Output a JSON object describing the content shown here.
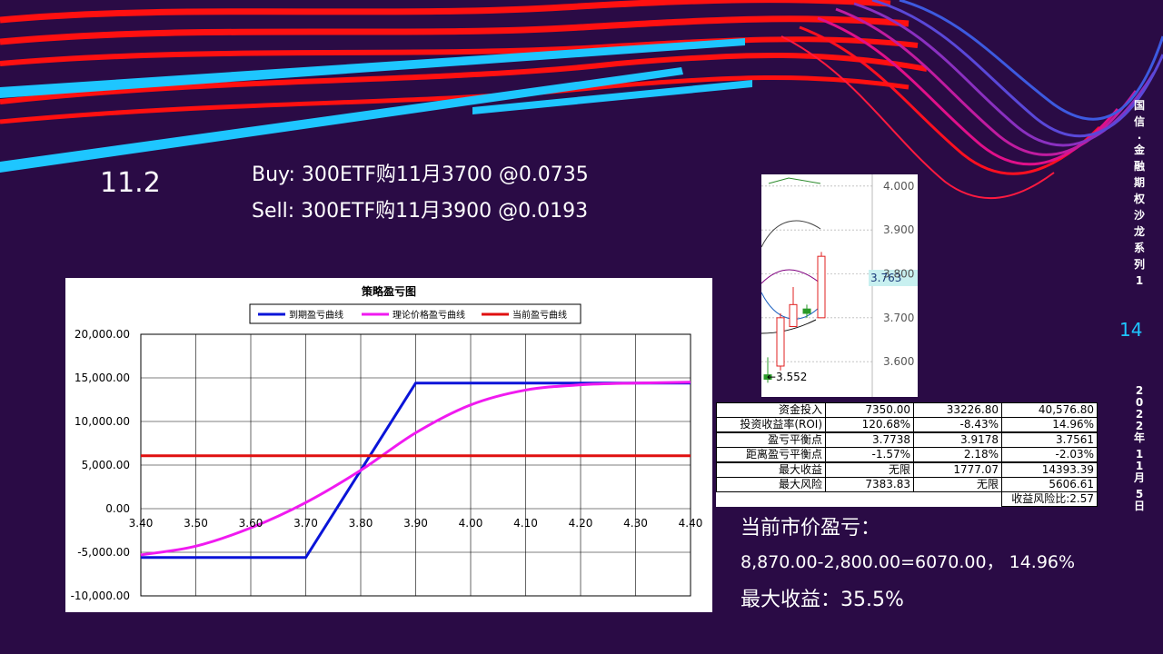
{
  "slide": {
    "title": "11.2",
    "buy": "Buy: 300ETF购11月3700 @0.0735",
    "sell": "Sell: 300ETF购11月3900 @0.0193",
    "page_number": "14",
    "sidebar_series": "国信·金融期权沙龙系列1",
    "sidebar_date": "2022年11月5日"
  },
  "notes": {
    "heading": "当前市价盈亏：",
    "calc": "8,870.00-2,800.00=6070.00，  14.96%",
    "max_gain": "最大收益：35.5%"
  },
  "stats": {
    "rows": [
      {
        "label": "资金投入",
        "c1": "7350.00",
        "c2": "33226.80",
        "c3": "40,576.80"
      },
      {
        "label": "投资收益率(ROI)",
        "c1": "120.68%",
        "c2": "-8.43%",
        "c3": "14.96%"
      },
      {
        "label": "盈亏平衡点",
        "c1": "3.7738",
        "c2": "3.9178",
        "c3": "3.7561"
      },
      {
        "label": "距离盈亏平衡点",
        "c1": "-1.57%",
        "c2": "2.18%",
        "c3": "-2.03%"
      },
      {
        "label": "最大收益",
        "c1": "无限",
        "c2": "1777.07",
        "c3": "14393.39"
      },
      {
        "label": "最大风险",
        "c1": "7383.83",
        "c2": "无限",
        "c3": "5606.61"
      }
    ],
    "footer": "收益风险比:2.57"
  },
  "colors": {
    "background": "#2a0b45",
    "expiry": "#0a14d8",
    "theoretical": "#f01af0",
    "current": "#e01010",
    "accent": "#1ec6ff"
  },
  "chart_data": [
    {
      "type": "line",
      "title": "策略盈亏图",
      "legend": [
        "到期盈亏曲线",
        "理论价格盈亏曲线",
        "当前盈亏曲线"
      ],
      "x_ticks": [
        "3.40",
        "3.50",
        "3.60",
        "3.70",
        "3.80",
        "3.90",
        "4.00",
        "4.10",
        "4.20",
        "4.30",
        "4.40"
      ],
      "y_ticks": [
        "20,000.00",
        "15,000.00",
        "10,000.00",
        "5,000.00",
        "0.00",
        "-5,000.00",
        "-10,000.00"
      ],
      "xlim": [
        3.4,
        4.4
      ],
      "ylim": [
        -10000,
        20000
      ],
      "grid": true,
      "legend_position": "top",
      "series": [
        {
          "name": "到期盈亏曲线",
          "x": [
            3.4,
            3.7,
            3.9,
            4.4
          ],
          "y": [
            -5600,
            -5600,
            14400,
            14400
          ]
        },
        {
          "name": "理论价格盈亏曲线",
          "x": [
            3.4,
            3.5,
            3.6,
            3.7,
            3.8,
            3.9,
            4.0,
            4.1,
            4.2,
            4.3,
            4.4
          ],
          "y": [
            -5300,
            -4300,
            -2200,
            700,
            4400,
            8700,
            11900,
            13600,
            14200,
            14400,
            14500
          ]
        },
        {
          "name": "当前盈亏曲线",
          "x": [
            3.4,
            4.4
          ],
          "y": [
            6070,
            6070
          ]
        }
      ]
    },
    {
      "type": "candlestick",
      "y_ticks": [
        "4.000",
        "3.900",
        "3.800",
        "3.700",
        "3.600"
      ],
      "ylim": [
        3.53,
        4.01
      ],
      "current_price": "3.763",
      "low_label": "←3.552",
      "candles": [
        {
          "open": 3.57,
          "close": 3.56,
          "high": 3.61,
          "low": 3.552
        },
        {
          "open": 3.59,
          "close": 3.7,
          "high": 3.71,
          "low": 3.58
        },
        {
          "open": 3.68,
          "close": 3.73,
          "high": 3.77,
          "low": 3.68
        },
        {
          "open": 3.72,
          "close": 3.71,
          "high": 3.73,
          "low": 3.7
        },
        {
          "open": 3.7,
          "close": 3.84,
          "high": 3.85,
          "low": 3.7
        }
      ]
    }
  ]
}
